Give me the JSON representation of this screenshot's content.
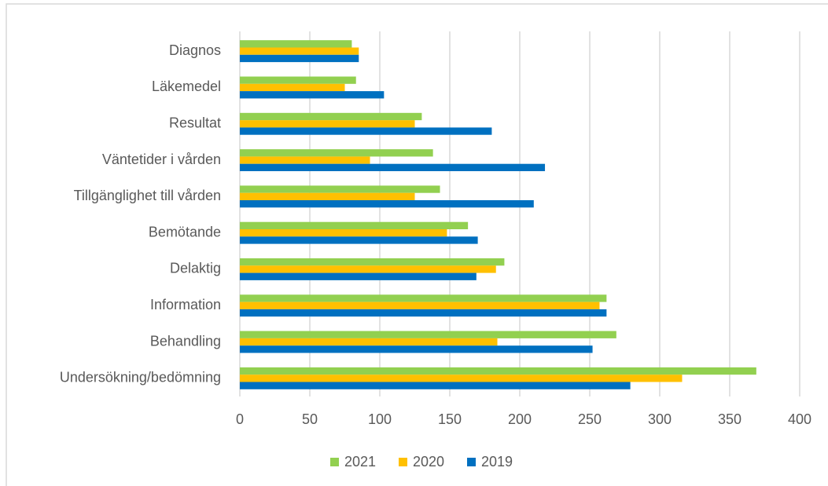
{
  "chart_data": {
    "type": "bar",
    "orientation": "horizontal",
    "categories": [
      "Diagnos",
      "Läkemedel",
      "Resultat",
      "Väntetider i vården",
      "Tillgänglighet till vården",
      "Bemötande",
      "Delaktig",
      "Information",
      "Behandling",
      "Undersökning/bedömning"
    ],
    "series": [
      {
        "name": "2021",
        "color": "#92d050",
        "values": [
          80,
          83,
          130,
          138,
          143,
          163,
          189,
          262,
          269,
          369
        ]
      },
      {
        "name": "2020",
        "color": "#ffc000",
        "values": [
          85,
          75,
          125,
          93,
          125,
          148,
          183,
          257,
          184,
          316
        ]
      },
      {
        "name": "2019",
        "color": "#0070c0",
        "values": [
          85,
          103,
          180,
          218,
          210,
          170,
          169,
          262,
          252,
          279
        ]
      }
    ],
    "xlim": [
      0,
      400
    ],
    "xticks": [
      0,
      50,
      100,
      150,
      200,
      250,
      300,
      350,
      400
    ],
    "grid": true,
    "legend": "bottom"
  }
}
